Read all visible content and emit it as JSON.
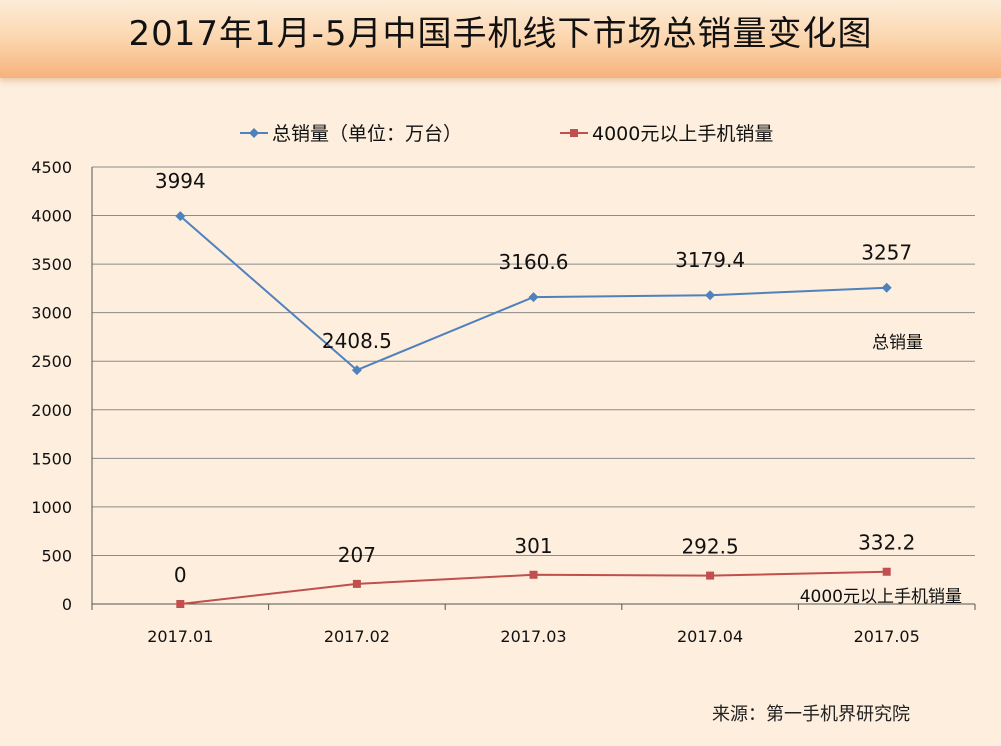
{
  "title": "2017年1月-5月中国手机线下市场总销量变化图",
  "source": "来源：第一手机界研究院",
  "colors": {
    "total": "#4f81bd",
    "premium": "#c0504d",
    "grid": "#8c8c8c",
    "axis": "#555555"
  },
  "chart_data": {
    "type": "line",
    "title": "2017年1月-5月中国手机线下市场总销量变化图",
    "categories": [
      "2017.01",
      "2017.02",
      "2017.03",
      "2017.04",
      "2017.05"
    ],
    "ylim": [
      0,
      4500
    ],
    "yticks": [
      "0",
      "500",
      "1000",
      "1500",
      "2000",
      "2500",
      "3000",
      "3500",
      "4000",
      "4500"
    ],
    "grid": true,
    "legend": "top",
    "series": [
      {
        "name": "总销量（单位：万台）",
        "values": [
          3994,
          2408.5,
          3160.6,
          3179.4,
          3257
        ],
        "labels": [
          "3994",
          "2408.5",
          "3160.6",
          "3179.4",
          "3257"
        ],
        "annotation": "总销量",
        "marker": "diamond"
      },
      {
        "name": "4000元以上手机销量",
        "values": [
          0,
          207,
          301,
          292.5,
          332.2
        ],
        "labels": [
          "0",
          "207",
          "301",
          "292.5",
          "332.2"
        ],
        "annotation": "4000元以上手机销量",
        "marker": "square"
      }
    ]
  }
}
